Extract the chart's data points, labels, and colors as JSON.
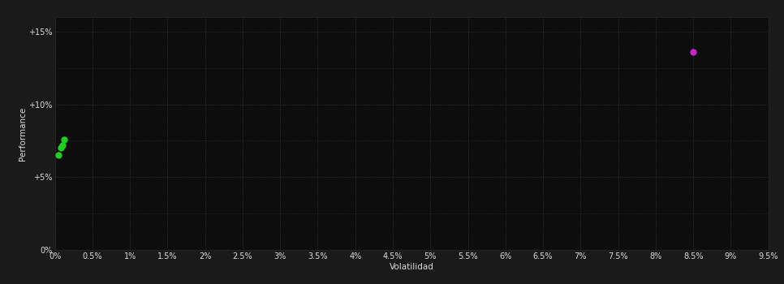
{
  "background_color": "#1a1a1a",
  "plot_bg_color": "#0d0d0d",
  "grid_color": "#3a3a3a",
  "xlabel": "Volatilidad",
  "ylabel": "Performance",
  "xlim": [
    0,
    0.095
  ],
  "ylim": [
    0,
    0.16
  ],
  "yticks": [
    0,
    0.05,
    0.1,
    0.15
  ],
  "ytick_labels": [
    "0%",
    "+5%",
    "+10%",
    "+15%"
  ],
  "green_points": [
    [
      0.001,
      0.072
    ],
    [
      0.0012,
      0.076
    ],
    [
      0.0008,
      0.07
    ],
    [
      0.0005,
      0.065
    ]
  ],
  "magenta_point": [
    0.085,
    0.136
  ],
  "green_color": "#22cc22",
  "magenta_color": "#cc22cc",
  "text_color": "#dddddd",
  "label_fontsize": 7.5,
  "tick_fontsize": 7
}
